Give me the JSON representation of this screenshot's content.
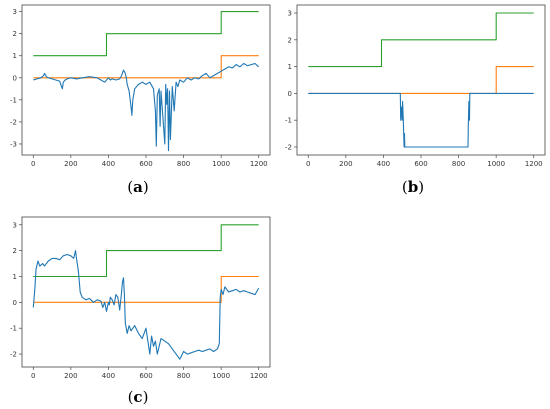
{
  "chart_data": [
    {
      "type": "line",
      "panel": "a",
      "caption": "a",
      "xlim": [
        -60,
        1260
      ],
      "ylim": [
        -3.5,
        3.3
      ],
      "xticks": [
        0,
        200,
        400,
        600,
        800,
        1000,
        1200
      ],
      "yticks": [
        -3,
        -2,
        -1,
        0,
        1,
        2,
        3
      ],
      "series": [
        {
          "color": "#2ca02c",
          "x": [
            0,
            390,
            390,
            1000,
            1000,
            1200
          ],
          "y": [
            1,
            1,
            2,
            2,
            3,
            3
          ]
        },
        {
          "color": "#ff7f0e",
          "x": [
            0,
            1000,
            1000,
            1200
          ],
          "y": [
            0,
            0,
            1,
            1
          ]
        },
        {
          "color": "#1f77b4",
          "x": [
            0,
            20,
            40,
            55,
            60,
            70,
            80,
            100,
            120,
            140,
            150,
            155,
            160,
            170,
            180,
            200,
            230,
            260,
            300,
            340,
            360,
            380,
            400,
            410,
            420,
            440,
            460,
            470,
            480,
            490,
            495,
            500,
            510,
            520,
            525,
            530,
            540,
            560,
            580,
            600,
            620,
            640,
            650,
            655,
            660,
            670,
            675,
            680,
            690,
            700,
            705,
            710,
            715,
            720,
            725,
            730,
            740,
            750,
            760,
            770,
            780,
            800,
            820,
            840,
            860,
            880,
            900,
            920,
            940,
            960,
            980,
            1000,
            1020,
            1040,
            1060,
            1080,
            1100,
            1120,
            1140,
            1160,
            1180,
            1200
          ],
          "y": [
            -0.1,
            -0.05,
            0,
            0.1,
            0.2,
            0.05,
            0,
            -0.05,
            -0.1,
            -0.15,
            -0.4,
            -0.5,
            -0.2,
            -0.1,
            -0.05,
            0,
            -0.05,
            0,
            0.05,
            0,
            -0.1,
            -0.2,
            0,
            -0.1,
            -0.05,
            -0.1,
            -0.05,
            0.1,
            0.35,
            0.2,
            0,
            -0.3,
            -0.6,
            -1.3,
            -1.7,
            -1.0,
            -0.5,
            -0.3,
            -0.2,
            -0.3,
            -0.2,
            -0.5,
            -1.5,
            -3.1,
            -0.8,
            -0.5,
            -2.2,
            -0.6,
            -1.8,
            -3.0,
            -0.3,
            -1.2,
            -0.5,
            -3.3,
            -0.6,
            -2.8,
            -0.4,
            -1.5,
            -0.2,
            -0.4,
            -0.1,
            -0.2,
            0,
            -0.1,
            0,
            -0.05,
            0.1,
            0.2,
            0,
            0.1,
            0.2,
            0.3,
            0.4,
            0.5,
            0.45,
            0.6,
            0.5,
            0.65,
            0.55,
            0.6,
            0.65,
            0.5
          ]
        }
      ]
    },
    {
      "type": "line",
      "panel": "b",
      "caption": "b",
      "xlim": [
        -60,
        1260
      ],
      "ylim": [
        -2.3,
        3.3
      ],
      "xticks": [
        0,
        200,
        400,
        600,
        800,
        1000,
        1200
      ],
      "yticks": [
        -2,
        -1,
        0,
        1,
        2,
        3
      ],
      "series": [
        {
          "color": "#2ca02c",
          "x": [
            0,
            390,
            390,
            1000,
            1000,
            1200
          ],
          "y": [
            1,
            1,
            2,
            2,
            3,
            3
          ]
        },
        {
          "color": "#ff7f0e",
          "x": [
            0,
            1000,
            1000,
            1200
          ],
          "y": [
            0,
            0,
            1,
            1
          ]
        },
        {
          "color": "#1f77b4",
          "x": [
            0,
            490,
            492,
            498,
            500,
            502,
            506,
            510,
            512,
            514,
            516,
            850,
            852,
            855,
            858,
            860,
            1200
          ],
          "y": [
            0,
            0,
            -1,
            -0.5,
            -1,
            -0.3,
            -1,
            -2,
            -1.5,
            -2,
            -2,
            -2,
            -1.2,
            -0.3,
            -1,
            0,
            0
          ]
        }
      ]
    },
    {
      "type": "line",
      "panel": "c",
      "caption": "c",
      "xlim": [
        -60,
        1260
      ],
      "ylim": [
        -2.5,
        3.3
      ],
      "xticks": [
        0,
        200,
        400,
        600,
        800,
        1000,
        1200
      ],
      "yticks": [
        -2,
        -1,
        0,
        1,
        2,
        3
      ],
      "series": [
        {
          "color": "#2ca02c",
          "x": [
            0,
            390,
            390,
            1000,
            1000,
            1200
          ],
          "y": [
            1,
            1,
            2,
            2,
            3,
            3
          ]
        },
        {
          "color": "#ff7f0e",
          "x": [
            0,
            1000,
            1000,
            1200
          ],
          "y": [
            0,
            0,
            1,
            1
          ]
        },
        {
          "color": "#1f77b4",
          "x": [
            0,
            8,
            15,
            25,
            35,
            50,
            60,
            80,
            100,
            120,
            140,
            160,
            180,
            200,
            215,
            225,
            230,
            240,
            250,
            260,
            280,
            300,
            320,
            340,
            360,
            370,
            380,
            390,
            400,
            405,
            410,
            420,
            430,
            440,
            450,
            460,
            470,
            475,
            480,
            485,
            490,
            500,
            510,
            520,
            540,
            560,
            580,
            600,
            620,
            630,
            640,
            650,
            660,
            680,
            700,
            720,
            740,
            760,
            780,
            800,
            820,
            840,
            860,
            880,
            900,
            920,
            940,
            960,
            980,
            990,
            995,
            1000,
            1010,
            1020,
            1040,
            1060,
            1080,
            1100,
            1120,
            1140,
            1160,
            1180,
            1200
          ],
          "y": [
            -0.2,
            0.5,
            1.3,
            1.6,
            1.4,
            1.5,
            1.4,
            1.6,
            1.7,
            1.7,
            1.65,
            1.8,
            1.85,
            1.8,
            1.7,
            2.0,
            1.7,
            1.2,
            0.4,
            0.2,
            0.1,
            0.15,
            0,
            0.1,
            0.05,
            -0.2,
            0,
            -0.35,
            0,
            -0.1,
            0.2,
            0.1,
            -0.1,
            0.3,
            0.2,
            -0.3,
            0.4,
            0.8,
            0.95,
            0.3,
            -0.8,
            -1.2,
            -0.9,
            -1.1,
            -0.9,
            -1.2,
            -1.4,
            -1.0,
            -2.0,
            -1.3,
            -1.7,
            -1.5,
            -2.0,
            -1.4,
            -1.5,
            -1.6,
            -1.8,
            -2.0,
            -2.2,
            -1.9,
            -2.0,
            -1.95,
            -1.9,
            -1.85,
            -1.9,
            -1.85,
            -1.8,
            -1.9,
            -1.8,
            -1.6,
            0.2,
            0.5,
            0.3,
            0.6,
            0.4,
            0.45,
            0.5,
            0.4,
            0.45,
            0.4,
            0.35,
            0.3,
            0.55
          ]
        }
      ]
    }
  ]
}
